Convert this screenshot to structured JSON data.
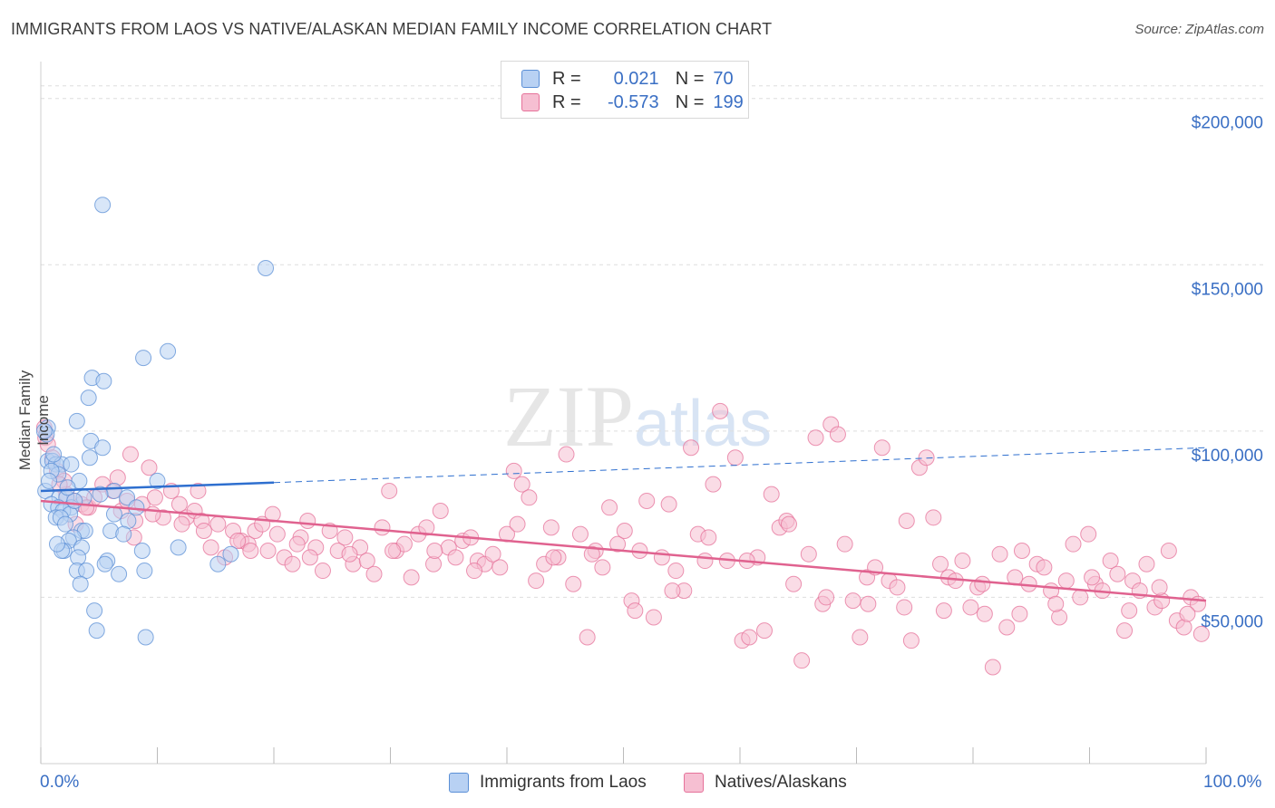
{
  "title": "IMMIGRANTS FROM LAOS VS NATIVE/ALASKAN MEDIAN FAMILY INCOME CORRELATION CHART",
  "source": "Source: ZipAtlas.com",
  "watermark": "ZIPatlas",
  "colors": {
    "blue": "#5b8fd6",
    "blue_fill": "#b8d1f3",
    "blue_line": "#2e6fcf",
    "pink": "#e6729a",
    "pink_fill": "#f6bfd2",
    "pink_line": "#e0628f",
    "grid": "#dddddd",
    "axis_text": "#3a6fc4"
  },
  "legend": {
    "rows": [
      {
        "r_label": "R =",
        "r_value": "0.021",
        "n_label": "N =",
        "n_value": "70"
      },
      {
        "r_label": "R =",
        "r_value": "-0.573",
        "n_label": "N =",
        "n_value": "199"
      }
    ]
  },
  "bottom_legend": [
    "Immigrants from Laos",
    "Natives/Alaskans"
  ],
  "chart_data": {
    "type": "scatter",
    "title": "IMMIGRANTS FROM LAOS VS NATIVE/ALASKAN MEDIAN FAMILY INCOME CORRELATION CHART",
    "xlabel": "",
    "ylabel": "Median Family Income",
    "xlim": [
      0,
      100
    ],
    "ylim": [
      0,
      210000
    ],
    "x_tick_labels": [
      "0.0%",
      "100.0%"
    ],
    "y_ticks": [
      50000,
      100000,
      150000,
      200000
    ],
    "y_tick_labels": [
      "$50,000",
      "$100,000",
      "$150,000",
      "$200,000"
    ],
    "grid": true,
    "series": [
      {
        "name": "Immigrants from Laos",
        "R": 0.021,
        "N": 70,
        "trend": {
          "x": [
            0,
            20
          ],
          "y": [
            82000,
            84500
          ],
          "dashed_to": [
            100,
            95000
          ]
        },
        "points": [
          [
            5.3,
            168000
          ],
          [
            19.3,
            149000
          ],
          [
            10.9,
            124000
          ],
          [
            8.8,
            122000
          ],
          [
            4.4,
            116000
          ],
          [
            5.4,
            115000
          ],
          [
            4.1,
            110000
          ],
          [
            3.1,
            103000
          ],
          [
            0.6,
            101000
          ],
          [
            0.5,
            99000
          ],
          [
            4.3,
            97000
          ],
          [
            5.3,
            95000
          ],
          [
            4.2,
            92000
          ],
          [
            0.6,
            91000
          ],
          [
            1.0,
            91000
          ],
          [
            1.3,
            90000
          ],
          [
            1.8,
            90000
          ],
          [
            2.6,
            90000
          ],
          [
            1.5,
            87000
          ],
          [
            3.3,
            85000
          ],
          [
            10.0,
            85000
          ],
          [
            6.3,
            82000
          ],
          [
            0.4,
            82000
          ],
          [
            1.6,
            80000
          ],
          [
            2.2,
            80000
          ],
          [
            3.7,
            80000
          ],
          [
            7.4,
            80000
          ],
          [
            0.9,
            78000
          ],
          [
            1.5,
            77000
          ],
          [
            2.6,
            77000
          ],
          [
            8.2,
            77000
          ],
          [
            1.9,
            76000
          ],
          [
            2.5,
            75000
          ],
          [
            6.3,
            75000
          ],
          [
            1.3,
            74000
          ],
          [
            1.7,
            74000
          ],
          [
            7.5,
            73000
          ],
          [
            2.1,
            72000
          ],
          [
            6.0,
            70000
          ],
          [
            3.5,
            70000
          ],
          [
            3.8,
            70000
          ],
          [
            2.8,
            68000
          ],
          [
            2.4,
            67000
          ],
          [
            11.8,
            65000
          ],
          [
            3.5,
            65000
          ],
          [
            2.0,
            64000
          ],
          [
            8.7,
            64000
          ],
          [
            1.8,
            64000
          ],
          [
            3.2,
            62000
          ],
          [
            16.3,
            63000
          ],
          [
            5.7,
            61000
          ],
          [
            5.5,
            60000
          ],
          [
            15.2,
            60000
          ],
          [
            3.1,
            58000
          ],
          [
            3.9,
            58000
          ],
          [
            6.7,
            57000
          ],
          [
            8.9,
            58000
          ],
          [
            3.4,
            54000
          ],
          [
            4.6,
            46000
          ],
          [
            4.8,
            40000
          ],
          [
            9.0,
            38000
          ],
          [
            0.9,
            88000
          ],
          [
            0.3,
            100000
          ],
          [
            1.1,
            93000
          ],
          [
            2.9,
            79000
          ],
          [
            5.1,
            81000
          ],
          [
            7.1,
            69000
          ],
          [
            1.4,
            66000
          ],
          [
            2.3,
            83000
          ],
          [
            0.7,
            85000
          ]
        ]
      },
      {
        "name": "Natives/Alaskans",
        "R": -0.573,
        "N": 199,
        "trend": {
          "x": [
            0,
            100
          ],
          "y": [
            79000,
            49000
          ]
        },
        "points": [
          [
            0.3,
            101000
          ],
          [
            0.4,
            98000
          ],
          [
            0.6,
            96000
          ],
          [
            1.0,
            92000
          ],
          [
            1.4,
            88000
          ],
          [
            2.0,
            85000
          ],
          [
            2.2,
            81000
          ],
          [
            2.9,
            79000
          ],
          [
            3.5,
            78000
          ],
          [
            4.1,
            77000
          ],
          [
            4.6,
            80000
          ],
          [
            5.3,
            84000
          ],
          [
            6.2,
            82000
          ],
          [
            6.9,
            76000
          ],
          [
            7.4,
            79000
          ],
          [
            7.7,
            93000
          ],
          [
            8.1,
            73000
          ],
          [
            8.7,
            78000
          ],
          [
            9.3,
            89000
          ],
          [
            9.8,
            80000
          ],
          [
            10.5,
            74000
          ],
          [
            11.2,
            82000
          ],
          [
            11.9,
            78000
          ],
          [
            12.5,
            74000
          ],
          [
            13.2,
            76000
          ],
          [
            13.8,
            73000
          ],
          [
            14.6,
            65000
          ],
          [
            15.2,
            72000
          ],
          [
            15.8,
            62000
          ],
          [
            16.5,
            70000
          ],
          [
            17.2,
            67000
          ],
          [
            17.8,
            66000
          ],
          [
            18.4,
            70000
          ],
          [
            19.0,
            72000
          ],
          [
            19.5,
            64000
          ],
          [
            20.3,
            69000
          ],
          [
            20.9,
            62000
          ],
          [
            21.6,
            60000
          ],
          [
            22.3,
            68000
          ],
          [
            22.9,
            73000
          ],
          [
            23.6,
            65000
          ],
          [
            24.2,
            58000
          ],
          [
            24.8,
            70000
          ],
          [
            25.5,
            64000
          ],
          [
            26.1,
            68000
          ],
          [
            26.8,
            60000
          ],
          [
            27.4,
            65000
          ],
          [
            28.0,
            61000
          ],
          [
            28.6,
            57000
          ],
          [
            29.3,
            71000
          ],
          [
            29.9,
            82000
          ],
          [
            30.5,
            64000
          ],
          [
            31.2,
            66000
          ],
          [
            31.8,
            56000
          ],
          [
            32.4,
            69000
          ],
          [
            33.1,
            71000
          ],
          [
            33.7,
            60000
          ],
          [
            34.3,
            76000
          ],
          [
            35.0,
            65000
          ],
          [
            35.6,
            62000
          ],
          [
            36.2,
            67000
          ],
          [
            36.9,
            68000
          ],
          [
            37.5,
            61000
          ],
          [
            38.1,
            60000
          ],
          [
            38.8,
            63000
          ],
          [
            39.4,
            59000
          ],
          [
            40.0,
            69000
          ],
          [
            40.6,
            88000
          ],
          [
            41.3,
            84000
          ],
          [
            41.9,
            80000
          ],
          [
            42.5,
            55000
          ],
          [
            43.2,
            60000
          ],
          [
            43.8,
            71000
          ],
          [
            44.4,
            62000
          ],
          [
            45.1,
            93000
          ],
          [
            45.7,
            54000
          ],
          [
            46.3,
            69000
          ],
          [
            46.9,
            38000
          ],
          [
            47.6,
            64000
          ],
          [
            48.2,
            59000
          ],
          [
            48.8,
            77000
          ],
          [
            49.5,
            66000
          ],
          [
            50.1,
            70000
          ],
          [
            50.7,
            49000
          ],
          [
            51.4,
            64000
          ],
          [
            52.0,
            79000
          ],
          [
            52.6,
            44000
          ],
          [
            53.3,
            62000
          ],
          [
            53.9,
            78000
          ],
          [
            54.5,
            58000
          ],
          [
            55.2,
            52000
          ],
          [
            55.8,
            95000
          ],
          [
            56.4,
            69000
          ],
          [
            57.0,
            61000
          ],
          [
            57.7,
            84000
          ],
          [
            58.3,
            106000
          ],
          [
            58.9,
            61000
          ],
          [
            59.6,
            92000
          ],
          [
            60.2,
            37000
          ],
          [
            60.8,
            38000
          ],
          [
            61.5,
            62000
          ],
          [
            62.1,
            40000
          ],
          [
            62.7,
            81000
          ],
          [
            63.4,
            71000
          ],
          [
            64.0,
            73000
          ],
          [
            64.6,
            54000
          ],
          [
            65.3,
            31000
          ],
          [
            65.9,
            63000
          ],
          [
            66.5,
            98000
          ],
          [
            67.1,
            48000
          ],
          [
            67.8,
            102000
          ],
          [
            68.4,
            99000
          ],
          [
            69.0,
            66000
          ],
          [
            69.7,
            49000
          ],
          [
            70.3,
            38000
          ],
          [
            70.9,
            56000
          ],
          [
            71.6,
            59000
          ],
          [
            72.2,
            95000
          ],
          [
            72.8,
            55000
          ],
          [
            73.5,
            53000
          ],
          [
            74.1,
            47000
          ],
          [
            74.7,
            37000
          ],
          [
            75.4,
            89000
          ],
          [
            76.0,
            92000
          ],
          [
            76.6,
            74000
          ],
          [
            77.2,
            60000
          ],
          [
            77.9,
            56000
          ],
          [
            78.5,
            55000
          ],
          [
            79.1,
            61000
          ],
          [
            79.8,
            47000
          ],
          [
            80.4,
            53000
          ],
          [
            81.0,
            45000
          ],
          [
            81.7,
            29000
          ],
          [
            82.3,
            63000
          ],
          [
            82.9,
            41000
          ],
          [
            83.6,
            56000
          ],
          [
            84.2,
            64000
          ],
          [
            84.8,
            54000
          ],
          [
            85.5,
            60000
          ],
          [
            86.1,
            59000
          ],
          [
            86.7,
            52000
          ],
          [
            87.4,
            44000
          ],
          [
            88.0,
            55000
          ],
          [
            88.6,
            66000
          ],
          [
            89.2,
            50000
          ],
          [
            89.9,
            69000
          ],
          [
            90.5,
            54000
          ],
          [
            91.1,
            52000
          ],
          [
            91.8,
            61000
          ],
          [
            92.4,
            57000
          ],
          [
            93.0,
            40000
          ],
          [
            93.7,
            55000
          ],
          [
            94.3,
            52000
          ],
          [
            94.9,
            60000
          ],
          [
            95.6,
            47000
          ],
          [
            96.2,
            49000
          ],
          [
            96.8,
            64000
          ],
          [
            97.5,
            43000
          ],
          [
            98.1,
            41000
          ],
          [
            98.7,
            50000
          ],
          [
            99.3,
            48000
          ],
          [
            99.6,
            39000
          ],
          [
            1.6,
            84000
          ],
          [
            3.9,
            77000
          ],
          [
            6.6,
            86000
          ],
          [
            9.6,
            75000
          ],
          [
            12.1,
            72000
          ],
          [
            14.0,
            70000
          ],
          [
            16.9,
            67000
          ],
          [
            19.9,
            75000
          ],
          [
            23.1,
            62000
          ],
          [
            26.5,
            63000
          ],
          [
            30.2,
            64000
          ],
          [
            33.8,
            64000
          ],
          [
            37.2,
            58000
          ],
          [
            40.9,
            72000
          ],
          [
            44.0,
            62000
          ],
          [
            47.3,
            63000
          ],
          [
            51.0,
            46000
          ],
          [
            54.2,
            52000
          ],
          [
            57.3,
            68000
          ],
          [
            60.6,
            61000
          ],
          [
            64.2,
            72000
          ],
          [
            67.4,
            50000
          ],
          [
            71.0,
            48000
          ],
          [
            74.3,
            73000
          ],
          [
            77.5,
            46000
          ],
          [
            80.8,
            54000
          ],
          [
            84.0,
            45000
          ],
          [
            87.1,
            48000
          ],
          [
            90.2,
            56000
          ],
          [
            93.4,
            46000
          ],
          [
            96.0,
            53000
          ],
          [
            98.4,
            45000
          ],
          [
            3.0,
            72000
          ],
          [
            8.0,
            68000
          ],
          [
            13.5,
            82000
          ],
          [
            18.0,
            64000
          ],
          [
            22.0,
            66000
          ]
        ]
      }
    ]
  }
}
